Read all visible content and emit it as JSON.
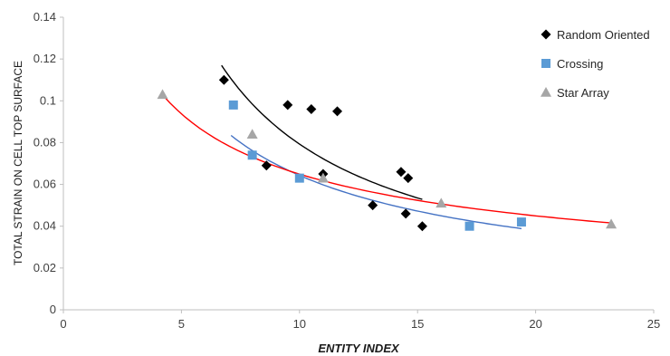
{
  "chart_data": {
    "type": "scatter",
    "xlabel": "ENTITY INDEX",
    "ylabel": "TOTAL STRAIN ON CELL TOP SURFACE",
    "xlim": [
      0,
      25
    ],
    "ylim": [
      0,
      0.14
    ],
    "x_ticks": [
      0,
      5,
      10,
      15,
      20,
      25
    ],
    "y_ticks": [
      0,
      0.02,
      0.04,
      0.06,
      0.08,
      0.1,
      0.12,
      0.14
    ],
    "y_tick_labels": [
      "0",
      "0.02",
      "0.04",
      "0.06",
      "0.08",
      "0.1",
      "0.12",
      "0.14"
    ],
    "x_tick_labels": [
      "0",
      "5",
      "10",
      "15",
      "20",
      "25"
    ],
    "grid": false,
    "legend_position": "top-right",
    "series": [
      {
        "name": "Random Oriented",
        "marker": "diamond",
        "color": "#000000",
        "trend_color": "#000000",
        "trend": {
          "type": "power",
          "a": 0.74,
          "b": -0.97,
          "x_range": [
            6.7,
            15.2
          ]
        },
        "points": [
          [
            6.8,
            0.11
          ],
          [
            8.6,
            0.069
          ],
          [
            9.5,
            0.098
          ],
          [
            10.5,
            0.096
          ],
          [
            11.0,
            0.065
          ],
          [
            11.6,
            0.095
          ],
          [
            13.1,
            0.05
          ],
          [
            14.3,
            0.066
          ],
          [
            14.6,
            0.063
          ],
          [
            14.5,
            0.046
          ],
          [
            15.2,
            0.04
          ]
        ]
      },
      {
        "name": "Crossing",
        "marker": "square",
        "color": "#5b9bd5",
        "trend_color": "#4472c4",
        "trend": {
          "type": "power",
          "a": 0.37,
          "b": -0.76,
          "x_range": [
            7.1,
            19.4
          ]
        },
        "points": [
          [
            7.2,
            0.098
          ],
          [
            8.0,
            0.074
          ],
          [
            10.0,
            0.063
          ],
          [
            17.2,
            0.04
          ],
          [
            19.4,
            0.042
          ]
        ]
      },
      {
        "name": "Star Array",
        "marker": "triangle",
        "color": "#a6a6a6",
        "trend_color": "#ff0000",
        "trend": {
          "type": "power",
          "a": 0.22,
          "b": -0.53,
          "x_range": [
            4.2,
            23.2
          ]
        },
        "points": [
          [
            4.2,
            0.103
          ],
          [
            8.0,
            0.084
          ],
          [
            11.0,
            0.063
          ],
          [
            16.0,
            0.051
          ],
          [
            23.2,
            0.041
          ]
        ]
      }
    ]
  }
}
